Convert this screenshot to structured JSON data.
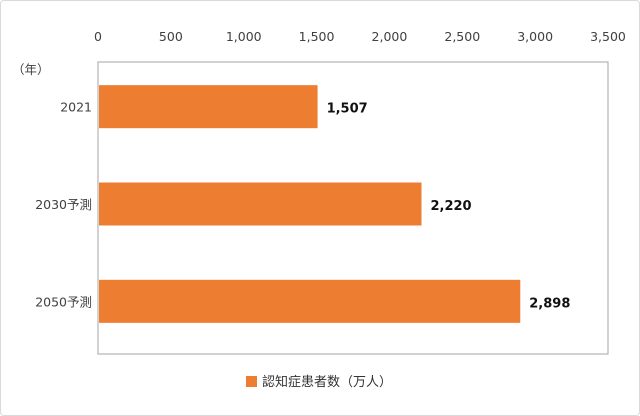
{
  "chart_data": {
    "type": "bar",
    "orientation": "horizontal",
    "categories": [
      "2021",
      "2030予測",
      "2050予測"
    ],
    "values": [
      1507,
      2220,
      2898
    ],
    "value_labels": [
      "1,507",
      "2,220",
      "2,898"
    ],
    "xticks": [
      "0",
      "500",
      "1,000",
      "1,500",
      "2,000",
      "2,500",
      "3,000",
      "3,500"
    ],
    "xlim": [
      0,
      3500
    ],
    "x_axis_position": "top",
    "category_axis_unit": "（年）",
    "legend": {
      "label": "認知症患者数（万人）",
      "position": "bottom"
    },
    "series": [
      {
        "name": "認知症患者数（万人）",
        "values": [
          1507,
          2220,
          2898
        ],
        "color": "#ED7D31"
      }
    ],
    "grid": false
  }
}
